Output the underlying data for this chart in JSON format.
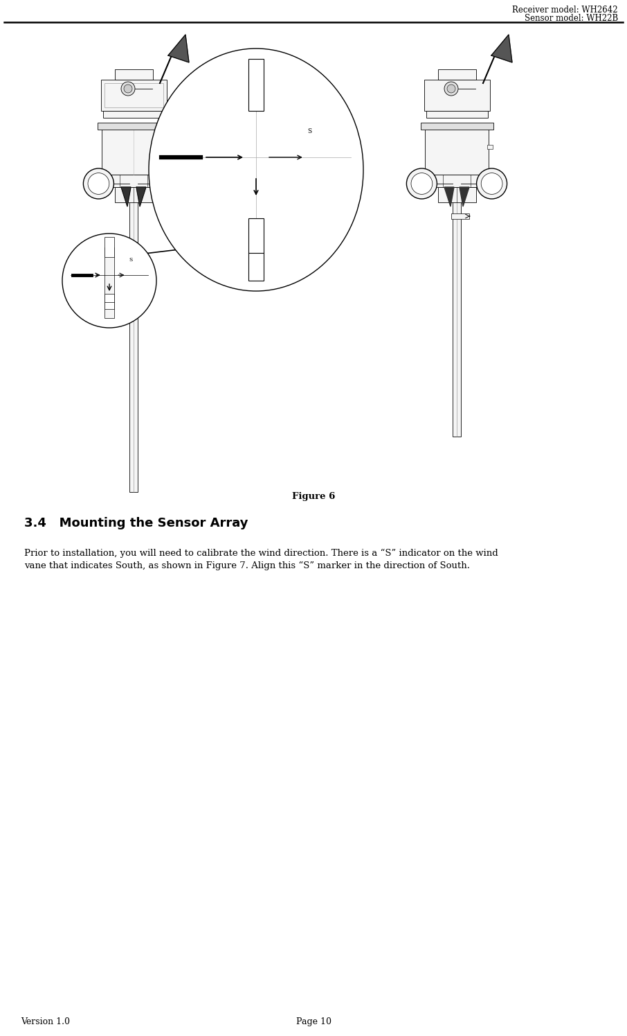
{
  "header_line1": "Receiver model: WH2642",
  "header_line2": "Sensor model: WH22B",
  "figure_caption": "Figure 6",
  "section_title": "3.4   Mounting the Sensor Array",
  "body_text_line1": "Prior to installation, you will need to calibrate the wind direction. There is a “S” indicator on the wind",
  "body_text_line2": "vane that indicates South, as shown in Figure 7. Align this “S” marker in the direction of South.",
  "footer_left": "Version 1.0",
  "footer_center": "Page 10",
  "bg_color": "#ffffff",
  "text_color": "#000000",
  "header_fontsize": 8.5,
  "caption_fontsize": 9.5,
  "section_fontsize": 13,
  "body_fontsize": 9.5,
  "footer_fontsize": 9
}
